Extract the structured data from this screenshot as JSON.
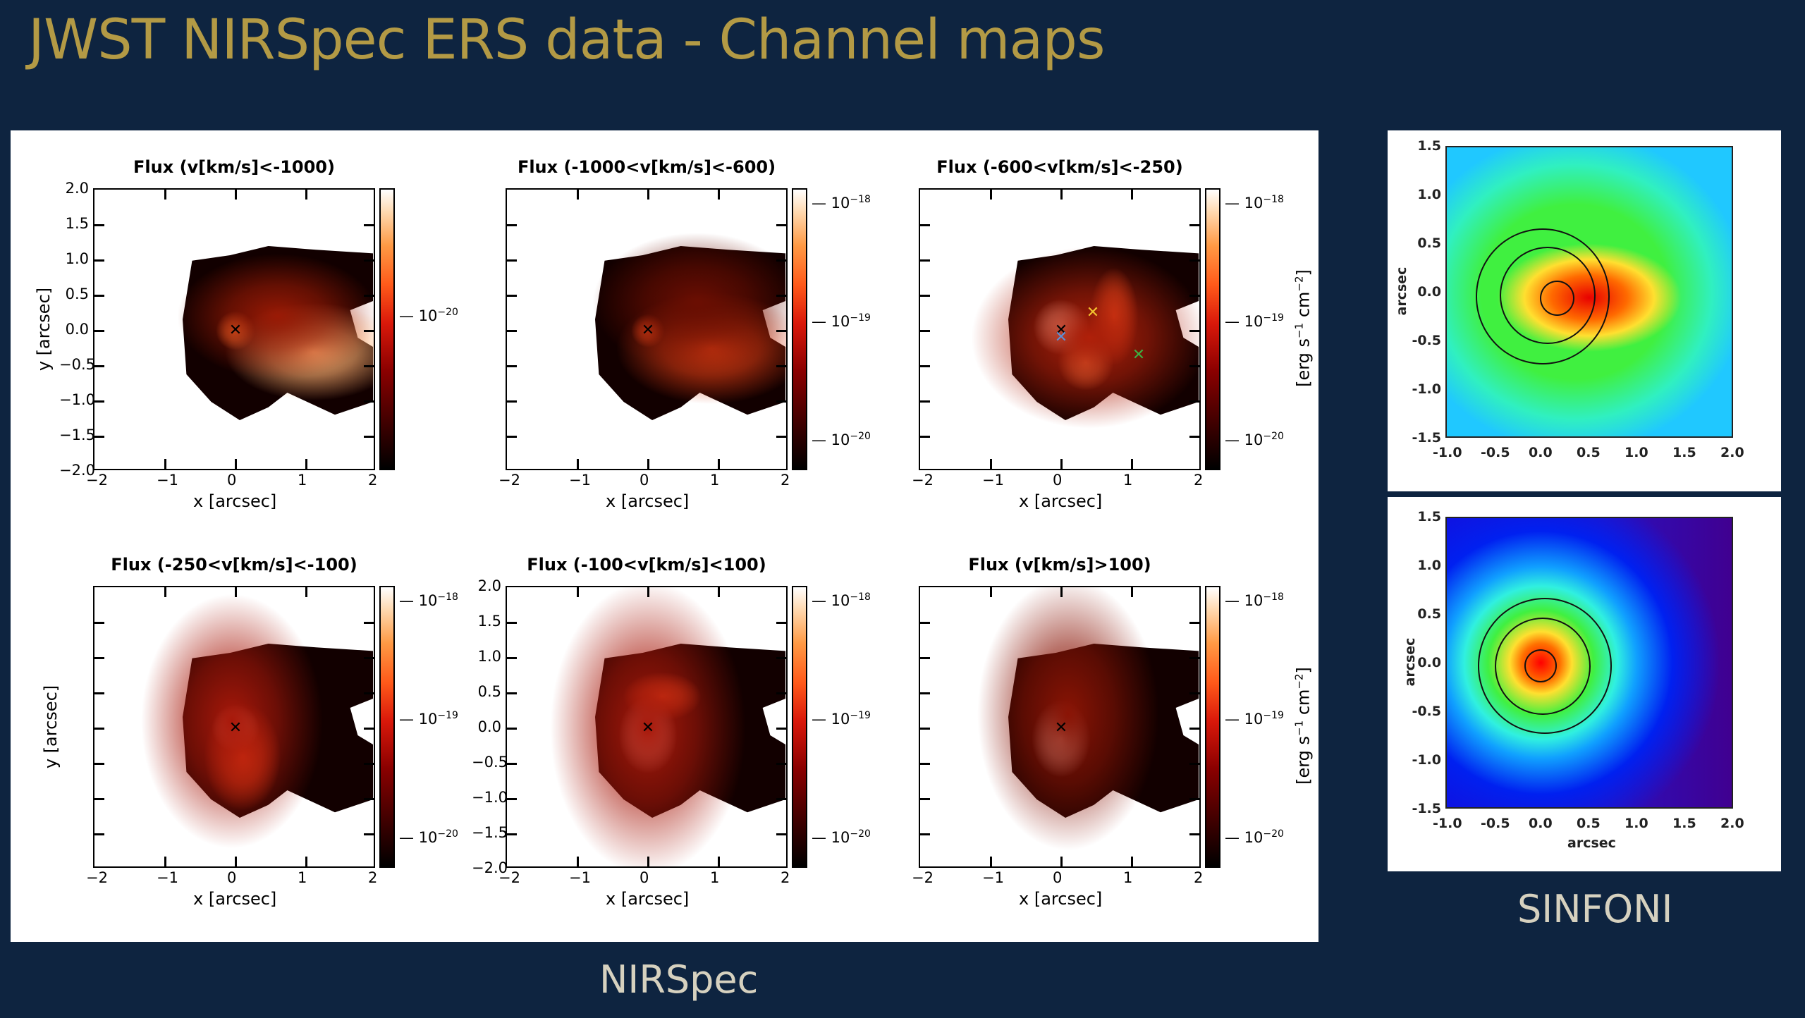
{
  "slide": {
    "title": "JWST NIRSpec ERS data - Channel maps",
    "captions": {
      "nirspec": "NIRSpec",
      "sinfoni": "SINFONI"
    },
    "colors": {
      "background": "#0e2440",
      "title": "#b39a45",
      "caption": "#d6d1bf"
    }
  },
  "nirspec": {
    "panels": [
      {
        "title": "Flux (v[km/s]<-1000)",
        "xlabel": "x [arcsec]",
        "ylabel": "y [arcsec]",
        "show_yticks": true,
        "cbar_ticks": [
          "10^-20"
        ],
        "cbar_unit": ""
      },
      {
        "title": "Flux (-1000<v[km/s]<-600)",
        "xlabel": "x [arcsec]",
        "ylabel": "",
        "show_yticks": false,
        "cbar_ticks": [
          "10^-18",
          "10^-19",
          "10^-20"
        ],
        "cbar_unit": ""
      },
      {
        "title": "Flux (-600<v[km/s]<-250)",
        "xlabel": "x [arcsec]",
        "ylabel": "",
        "show_yticks": false,
        "cbar_ticks": [
          "10^-18",
          "10^-19",
          "10^-20"
        ],
        "cbar_unit": "[erg s^-1 cm^-2]"
      },
      {
        "title": "Flux (-250<v[km/s]<-100)",
        "xlabel": "x [arcsec]",
        "ylabel": "y [arcsec]",
        "show_yticks": false,
        "cbar_ticks": [
          "10^-18",
          "10^-19",
          "10^-20"
        ],
        "cbar_unit": ""
      },
      {
        "title": "Flux (-100<v[km/s]<100)",
        "xlabel": "x [arcsec]",
        "ylabel": "",
        "show_yticks": true,
        "cbar_ticks": [
          "10^-18",
          "10^-19",
          "10^-20"
        ],
        "cbar_unit": ""
      },
      {
        "title": "Flux (v[km/s]>100)",
        "xlabel": "x [arcsec]",
        "ylabel": "",
        "show_yticks": false,
        "cbar_ticks": [
          "10^-18",
          "10^-19",
          "10^-20"
        ],
        "cbar_unit": "[erg s^-1 cm^-2]"
      }
    ],
    "xticks": [
      "−2",
      "−1",
      "0",
      "1",
      "2"
    ],
    "yticks": [
      "2.0",
      "1.5",
      "1.0",
      "0.5",
      "0.0",
      "−0.5",
      "−1.0",
      "−1.5",
      "−2.0"
    ],
    "markers_panel3": [
      {
        "x": 0.0,
        "y": 0.0,
        "color": "#000000"
      },
      {
        "x": 0.0,
        "y": -0.1,
        "color": "#5b8fd6"
      },
      {
        "x": 0.45,
        "y": 0.25,
        "color": "#f2c230"
      },
      {
        "x": 1.1,
        "y": -0.35,
        "color": "#3cb043"
      }
    ]
  },
  "sinfoni": {
    "panels": [
      {
        "xlabel": "arcsec",
        "ylabel": "arcsec",
        "colormap": "jet",
        "peak_note": "elongated emission toward +x"
      },
      {
        "xlabel": "arcsec",
        "ylabel": "arcsec",
        "colormap": "jet",
        "peak_note": "compact emission at origin"
      }
    ],
    "xticks": [
      "-1.0",
      "-0.5",
      "0.0",
      "0.5",
      "1.0",
      "1.5",
      "2.0"
    ],
    "yticks": [
      "1.5",
      "1.0",
      "0.5",
      "0.0",
      "-0.5",
      "-1.0",
      "-1.5"
    ]
  },
  "chart_data": [
    {
      "type": "heatmap",
      "title": "Flux (v[km/s]<-1000)",
      "xlabel": "x [arcsec]",
      "ylabel": "y [arcsec]",
      "xlim": [
        -2,
        2
      ],
      "ylim": [
        -2,
        2
      ],
      "colorbar": {
        "scale": "log",
        "ticks": [
          "10^-20"
        ],
        "colormap": "gist_heat"
      },
      "features": [
        {
          "x": 0,
          "y": 0,
          "marker": "x"
        },
        {
          "x": 1.1,
          "y": -0.3,
          "note": "brightest blob"
        }
      ]
    },
    {
      "type": "heatmap",
      "title": "Flux (-1000<v[km/s]<-600)",
      "xlabel": "x [arcsec]",
      "xlim": [
        -2,
        2
      ],
      "ylim": [
        -2,
        2
      ],
      "colorbar": {
        "scale": "log",
        "ticks": [
          "10^-18",
          "10^-19",
          "10^-20"
        ],
        "colormap": "gist_heat"
      },
      "features": [
        {
          "x": 0,
          "y": 0,
          "marker": "x"
        },
        {
          "x": 0.9,
          "y": -0.25,
          "note": "extended emission"
        }
      ]
    },
    {
      "type": "heatmap",
      "title": "Flux (-600<v[km/s]<-250)",
      "xlabel": "x [arcsec]",
      "xlim": [
        -2,
        2
      ],
      "ylim": [
        -2,
        2
      ],
      "colorbar": {
        "scale": "log",
        "ticks": [
          "10^-18",
          "10^-19",
          "10^-20"
        ],
        "label": "[erg s^-1 cm^-2]",
        "colormap": "gist_heat"
      },
      "features": [
        {
          "x": 0,
          "y": 0,
          "marker": "x",
          "color": "black"
        },
        {
          "x": 0,
          "y": -0.1,
          "marker": "x",
          "color": "blue"
        },
        {
          "x": 0.45,
          "y": 0.25,
          "marker": "x",
          "color": "yellow"
        },
        {
          "x": 1.1,
          "y": -0.35,
          "marker": "x",
          "color": "green"
        }
      ]
    },
    {
      "type": "heatmap",
      "title": "Flux (-250<v[km/s]<-100)",
      "xlabel": "x [arcsec]",
      "ylabel": "y [arcsec]",
      "xlim": [
        -2,
        2
      ],
      "ylim": [
        -2,
        2
      ],
      "colorbar": {
        "scale": "log",
        "ticks": [
          "10^-18",
          "10^-19",
          "10^-20"
        ],
        "colormap": "gist_heat"
      },
      "features": [
        {
          "x": 0,
          "y": 0,
          "marker": "x",
          "note": "peak"
        }
      ]
    },
    {
      "type": "heatmap",
      "title": "Flux (-100<v[km/s]<100)",
      "xlabel": "x [arcsec]",
      "xlim": [
        -2,
        2
      ],
      "ylim": [
        -2,
        2
      ],
      "colorbar": {
        "scale": "log",
        "ticks": [
          "10^-18",
          "10^-19",
          "10^-20"
        ],
        "colormap": "gist_heat"
      },
      "features": [
        {
          "x": 0,
          "y": 0,
          "marker": "x",
          "note": "peak"
        }
      ]
    },
    {
      "type": "heatmap",
      "title": "Flux (v[km/s]>100)",
      "xlabel": "x [arcsec]",
      "xlim": [
        -2,
        2
      ],
      "ylim": [
        -2,
        2
      ],
      "colorbar": {
        "scale": "log",
        "ticks": [
          "10^-18",
          "10^-19",
          "10^-20"
        ],
        "label": "[erg s^-1 cm^-2]",
        "colormap": "gist_heat"
      },
      "features": [
        {
          "x": 0,
          "y": -0.1,
          "marker": "x",
          "note": "peak"
        }
      ]
    },
    {
      "type": "heatmap",
      "title": "SINFONI (top)",
      "xlabel": "arcsec",
      "ylabel": "arcsec",
      "xlim": [
        -1.0,
        2.0
      ],
      "ylim": [
        -1.5,
        1.5
      ],
      "colormap": "jet",
      "contours": [
        {
          "cx": -0.05,
          "cy": 0.0,
          "r": 0.18
        },
        {
          "cx": 0.05,
          "cy": -0.02,
          "r": 0.5
        },
        {
          "cx": -0.0,
          "cy": -0.03,
          "r": 0.7
        }
      ],
      "features": [
        {
          "x": 0.6,
          "y": -0.1,
          "note": "red peak elongated east"
        }
      ]
    },
    {
      "type": "heatmap",
      "title": "SINFONI (bottom)",
      "xlabel": "arcsec",
      "ylabel": "arcsec",
      "xlim": [
        -1.0,
        2.0
      ],
      "ylim": [
        -1.5,
        1.5
      ],
      "colormap": "jet",
      "contours": [
        {
          "cx": -0.05,
          "cy": 0.0,
          "r": 0.17
        },
        {
          "cx": 0.0,
          "cy": -0.02,
          "r": 0.5
        },
        {
          "cx": 0.0,
          "cy": -0.02,
          "r": 0.7
        }
      ],
      "features": [
        {
          "x": 0.0,
          "y": 0.0,
          "note": "compact red peak"
        }
      ]
    }
  ]
}
